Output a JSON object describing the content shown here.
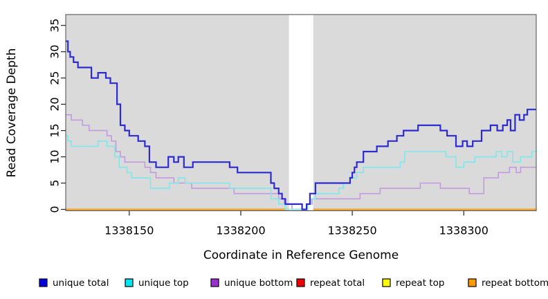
{
  "chart_data": {
    "type": "line",
    "subtype": "step",
    "title": "",
    "xlabel": "Coordinate in Reference Genome",
    "ylabel": "Read Coverage Depth",
    "xlim": [
      1338121.5,
      1338332.5
    ],
    "ylim": [
      0,
      35
    ],
    "x_ticks": [
      1338150,
      1338200,
      1338250,
      1338300
    ],
    "y_ticks": [
      0,
      5,
      10,
      15,
      20,
      25,
      30,
      35
    ],
    "grid": false,
    "plot_background": "#DADADA",
    "masked_region": {
      "x_from": 1338221.6,
      "x_to": 1338232.5,
      "color": "#FFFFFF"
    },
    "legend_position": "bottom",
    "series": [
      {
        "name": "unique total",
        "line_color": "#2B2BD0",
        "swatch_color": "#0000DD",
        "line_width": 2.2,
        "points": [
          [
            1338121.5,
            32
          ],
          [
            1338122.5,
            30
          ],
          [
            1338123.5,
            29
          ],
          [
            1338125,
            28
          ],
          [
            1338127,
            27
          ],
          [
            1338133,
            25
          ],
          [
            1338136,
            26
          ],
          [
            1338139.5,
            25
          ],
          [
            1338141.5,
            24
          ],
          [
            1338144.5,
            20
          ],
          [
            1338146,
            16
          ],
          [
            1338148,
            15
          ],
          [
            1338150,
            14
          ],
          [
            1338154,
            13
          ],
          [
            1338157,
            12
          ],
          [
            1338159,
            9
          ],
          [
            1338162,
            8
          ],
          [
            1338167.5,
            10
          ],
          [
            1338170,
            9
          ],
          [
            1338172,
            10
          ],
          [
            1338174.5,
            8
          ],
          [
            1338178.5,
            9
          ],
          [
            1338195,
            8
          ],
          [
            1338198.5,
            7
          ],
          [
            1338213.5,
            5
          ],
          [
            1338215,
            4
          ],
          [
            1338217,
            3
          ],
          [
            1338218.5,
            2
          ],
          [
            1338220,
            1
          ],
          [
            1338227.5,
            0
          ],
          [
            1338229.5,
            1
          ],
          [
            1338231,
            3
          ],
          [
            1338233.5,
            5
          ],
          [
            1338249,
            6
          ],
          [
            1338250,
            7
          ],
          [
            1338251,
            8
          ],
          [
            1338252,
            9
          ],
          [
            1338255,
            11
          ],
          [
            1338261,
            12
          ],
          [
            1338266,
            13
          ],
          [
            1338270,
            14
          ],
          [
            1338273,
            15
          ],
          [
            1338279.5,
            16
          ],
          [
            1338289.5,
            15
          ],
          [
            1338292.5,
            14
          ],
          [
            1338296.5,
            12
          ],
          [
            1338299.5,
            13
          ],
          [
            1338301.5,
            12
          ],
          [
            1338304,
            13
          ],
          [
            1338308,
            15
          ],
          [
            1338312,
            16
          ],
          [
            1338315,
            15
          ],
          [
            1338317.5,
            16
          ],
          [
            1338319.5,
            17
          ],
          [
            1338321,
            15
          ],
          [
            1338323,
            18
          ],
          [
            1338325,
            17
          ],
          [
            1338327,
            18
          ],
          [
            1338328.5,
            19
          ]
        ]
      },
      {
        "name": "unique top",
        "line_color": "#7DE8EC",
        "swatch_color": "#00E5EE",
        "line_width": 1.6,
        "points": [
          [
            1338121.5,
            14
          ],
          [
            1338122.5,
            13
          ],
          [
            1338124,
            12
          ],
          [
            1338136,
            13
          ],
          [
            1338140,
            12
          ],
          [
            1338143.5,
            10
          ],
          [
            1338145.5,
            8
          ],
          [
            1338149,
            7
          ],
          [
            1338151,
            6
          ],
          [
            1338159.5,
            4
          ],
          [
            1338168,
            5
          ],
          [
            1338172,
            6
          ],
          [
            1338175,
            5
          ],
          [
            1338195,
            4
          ],
          [
            1338213.5,
            2
          ],
          [
            1338217,
            1
          ],
          [
            1338220,
            0
          ],
          [
            1338230,
            1
          ],
          [
            1338231.5,
            2
          ],
          [
            1338233.5,
            3
          ],
          [
            1338244,
            4
          ],
          [
            1338246,
            5
          ],
          [
            1338249,
            6
          ],
          [
            1338252,
            7
          ],
          [
            1338255,
            8
          ],
          [
            1338271.5,
            9
          ],
          [
            1338273.5,
            11
          ],
          [
            1338292,
            10
          ],
          [
            1338296.5,
            8
          ],
          [
            1338300,
            9
          ],
          [
            1338305,
            10
          ],
          [
            1338314.5,
            11
          ],
          [
            1338317,
            10
          ],
          [
            1338319.5,
            11
          ],
          [
            1338322,
            9
          ],
          [
            1338325.5,
            10
          ],
          [
            1338330.5,
            11
          ]
        ]
      },
      {
        "name": "unique bottom",
        "line_color": "#C29ADF",
        "swatch_color": "#9932CC",
        "line_width": 1.6,
        "points": [
          [
            1338121.5,
            18
          ],
          [
            1338124,
            17
          ],
          [
            1338129,
            16
          ],
          [
            1338132,
            15
          ],
          [
            1338140,
            14
          ],
          [
            1338142,
            13
          ],
          [
            1338144,
            11
          ],
          [
            1338146,
            10
          ],
          [
            1338148,
            9
          ],
          [
            1338157,
            8
          ],
          [
            1338159.5,
            7
          ],
          [
            1338162,
            6
          ],
          [
            1338170,
            5
          ],
          [
            1338178,
            4
          ],
          [
            1338197,
            3
          ],
          [
            1338217,
            2
          ],
          [
            1338219.5,
            1
          ],
          [
            1338223,
            0
          ],
          [
            1338229.5,
            1
          ],
          [
            1338232,
            2
          ],
          [
            1338253.5,
            3
          ],
          [
            1338262.5,
            4
          ],
          [
            1338280.5,
            5
          ],
          [
            1338289.5,
            4
          ],
          [
            1338302.5,
            3
          ],
          [
            1338309,
            6
          ],
          [
            1338315.5,
            7
          ],
          [
            1338320.5,
            8
          ],
          [
            1338323.5,
            7
          ],
          [
            1338325.5,
            8
          ]
        ]
      },
      {
        "name": "repeat total",
        "line_color": "#DD0000",
        "swatch_color": "#EE0000",
        "line_width": 1.6,
        "points": [
          [
            1338121.5,
            0
          ]
        ]
      },
      {
        "name": "repeat top",
        "line_color": "#E8E800",
        "swatch_color": "#FFFF00",
        "line_width": 1.6,
        "points": [
          [
            1338121.5,
            0
          ]
        ]
      },
      {
        "name": "repeat bottom",
        "line_color": "#FF9300",
        "swatch_color": "#FF9900",
        "line_width": 1.8,
        "points": [
          [
            1338121.5,
            0
          ]
        ]
      }
    ]
  }
}
